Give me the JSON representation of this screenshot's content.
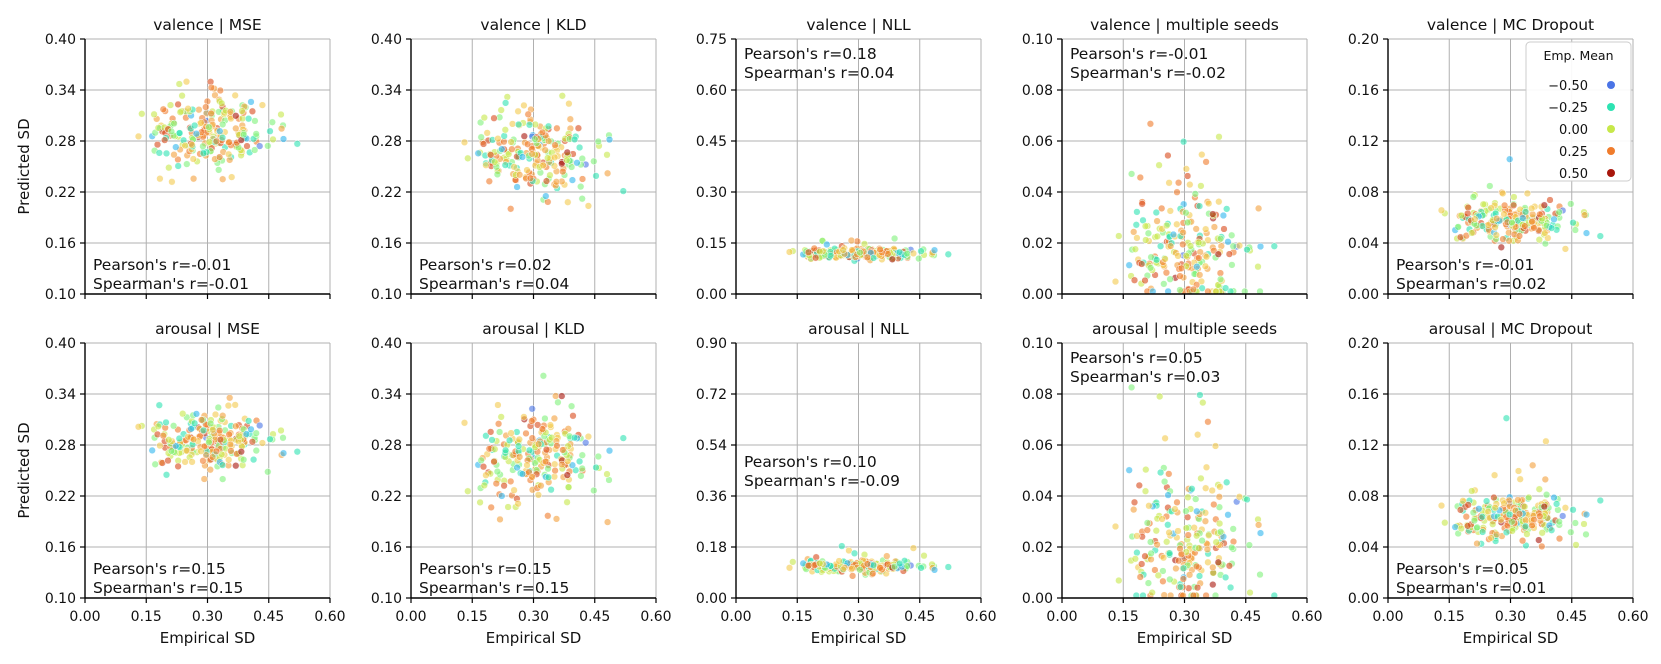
{
  "chart_data": {
    "type": "scatter",
    "ylabel": "Predicted SD",
    "xlabel": "Empirical SD",
    "x_ticks": [
      "0.00",
      "0.15",
      "0.30",
      "0.45",
      "0.60"
    ],
    "xlim": [
      0,
      0.6
    ],
    "legend": {
      "title": "Emp. Mean",
      "placement": "top-right of valence | MC Dropout panel",
      "entries": [
        {
          "label": "−0.50",
          "color": "#4a74e6"
        },
        {
          "label": "−0.25",
          "color": "#2de3b2"
        },
        {
          "label": "0.00",
          "color": "#c7e84a"
        },
        {
          "label": "0.25",
          "color": "#f07c2c"
        },
        {
          "label": "0.50",
          "color": "#a8160c"
        }
      ]
    },
    "panels": [
      {
        "title": "valence | MSE",
        "row": 0,
        "col": 0,
        "ylim": [
          0.1,
          0.4
        ],
        "y_ticks": [
          "0.10",
          "0.16",
          "0.22",
          "0.28",
          "0.34",
          "0.40"
        ],
        "annotation_pos": "bottom",
        "pearson": "Pearson's r=-0.01",
        "spearman": "Spearman's r=-0.01",
        "cloud": {
          "mode": "blob",
          "center": 0.29,
          "spread": 0.022,
          "n": 230
        }
      },
      {
        "title": "valence | KLD",
        "row": 0,
        "col": 1,
        "ylim": [
          0.1,
          0.4
        ],
        "y_ticks": [
          "0.10",
          "0.16",
          "0.22",
          "0.28",
          "0.34",
          "0.40"
        ],
        "annotation_pos": "bottom",
        "pearson": "Pearson's r=0.02",
        "spearman": "Spearman's r=0.04",
        "cloud": {
          "mode": "blob",
          "center": 0.262,
          "spread": 0.024,
          "n": 230
        }
      },
      {
        "title": "valence | NLL",
        "row": 0,
        "col": 2,
        "ylim": [
          0.0,
          0.75
        ],
        "y_ticks": [
          "0.00",
          "0.15",
          "0.30",
          "0.45",
          "0.60",
          "0.75"
        ],
        "annotation_pos": "top",
        "pearson": "Pearson's r=0.18",
        "spearman": "Spearman's r=0.04",
        "cloud": {
          "mode": "band",
          "center": 0.118,
          "spread": 0.008,
          "n": 230
        }
      },
      {
        "title": "valence | multiple seeds",
        "row": 0,
        "col": 3,
        "ylim": [
          0.0,
          0.1
        ],
        "y_ticks": [
          "0.00",
          "0.02",
          "0.04",
          "0.06",
          "0.08",
          "0.10"
        ],
        "annotation_pos": "top",
        "pearson": "Pearson's r=-0.01",
        "spearman": "Spearman's r=-0.02",
        "cloud": {
          "mode": "wide",
          "center": 0.016,
          "spread": 0.011,
          "n": 230
        }
      },
      {
        "title": "valence | MC Dropout",
        "row": 0,
        "col": 4,
        "ylim": [
          0.0,
          0.2
        ],
        "y_ticks": [
          "0.00",
          "0.04",
          "0.08",
          "0.12",
          "0.16",
          "0.20"
        ],
        "annotation_pos": "bottom",
        "pearson": "Pearson's r=-0.01",
        "spearman": "Spearman's r=0.02",
        "cloud": {
          "mode": "band",
          "center": 0.057,
          "spread": 0.008,
          "n": 230
        }
      },
      {
        "title": "arousal | MSE",
        "row": 1,
        "col": 0,
        "ylim": [
          0.1,
          0.4
        ],
        "y_ticks": [
          "0.10",
          "0.16",
          "0.22",
          "0.28",
          "0.34",
          "0.40"
        ],
        "annotation_pos": "bottom",
        "pearson": "Pearson's r=0.15",
        "spearman": "Spearman's r=0.15",
        "cloud": {
          "mode": "blob",
          "center": 0.285,
          "spread": 0.017,
          "n": 230
        }
      },
      {
        "title": "arousal | KLD",
        "row": 1,
        "col": 1,
        "ylim": [
          0.1,
          0.4
        ],
        "y_ticks": [
          "0.10",
          "0.16",
          "0.22",
          "0.28",
          "0.34",
          "0.40"
        ],
        "annotation_pos": "bottom",
        "pearson": "Pearson's r=0.15",
        "spearman": "Spearman's r=0.15",
        "cloud": {
          "mode": "blob",
          "center": 0.262,
          "spread": 0.026,
          "n": 230
        }
      },
      {
        "title": "arousal | NLL",
        "row": 1,
        "col": 2,
        "ylim": [
          0.0,
          0.9
        ],
        "y_ticks": [
          "0.00",
          "0.18",
          "0.36",
          "0.54",
          "0.72",
          "0.90"
        ],
        "annotation_pos": "middle",
        "pearson": "Pearson's r=0.10",
        "spearman": "Spearman's r=-0.09",
        "cloud": {
          "mode": "band",
          "center": 0.112,
          "spread": 0.01,
          "n": 230
        }
      },
      {
        "title": "arousal | multiple seeds",
        "row": 1,
        "col": 3,
        "ylim": [
          0.0,
          0.1
        ],
        "y_ticks": [
          "0.00",
          "0.02",
          "0.04",
          "0.06",
          "0.08",
          "0.10"
        ],
        "annotation_pos": "top",
        "pearson": "Pearson's r=0.05",
        "spearman": "Spearman's r=0.03",
        "cloud": {
          "mode": "wide",
          "center": 0.02,
          "spread": 0.013,
          "n": 230
        }
      },
      {
        "title": "arousal | MC Dropout",
        "row": 1,
        "col": 4,
        "ylim": [
          0.0,
          0.2
        ],
        "y_ticks": [
          "0.00",
          "0.04",
          "0.08",
          "0.12",
          "0.16",
          "0.20"
        ],
        "annotation_pos": "bottom",
        "pearson": "Pearson's r=0.05",
        "spearman": "Spearman's r=0.01",
        "cloud": {
          "mode": "band",
          "center": 0.063,
          "spread": 0.009,
          "n": 230
        }
      }
    ]
  }
}
